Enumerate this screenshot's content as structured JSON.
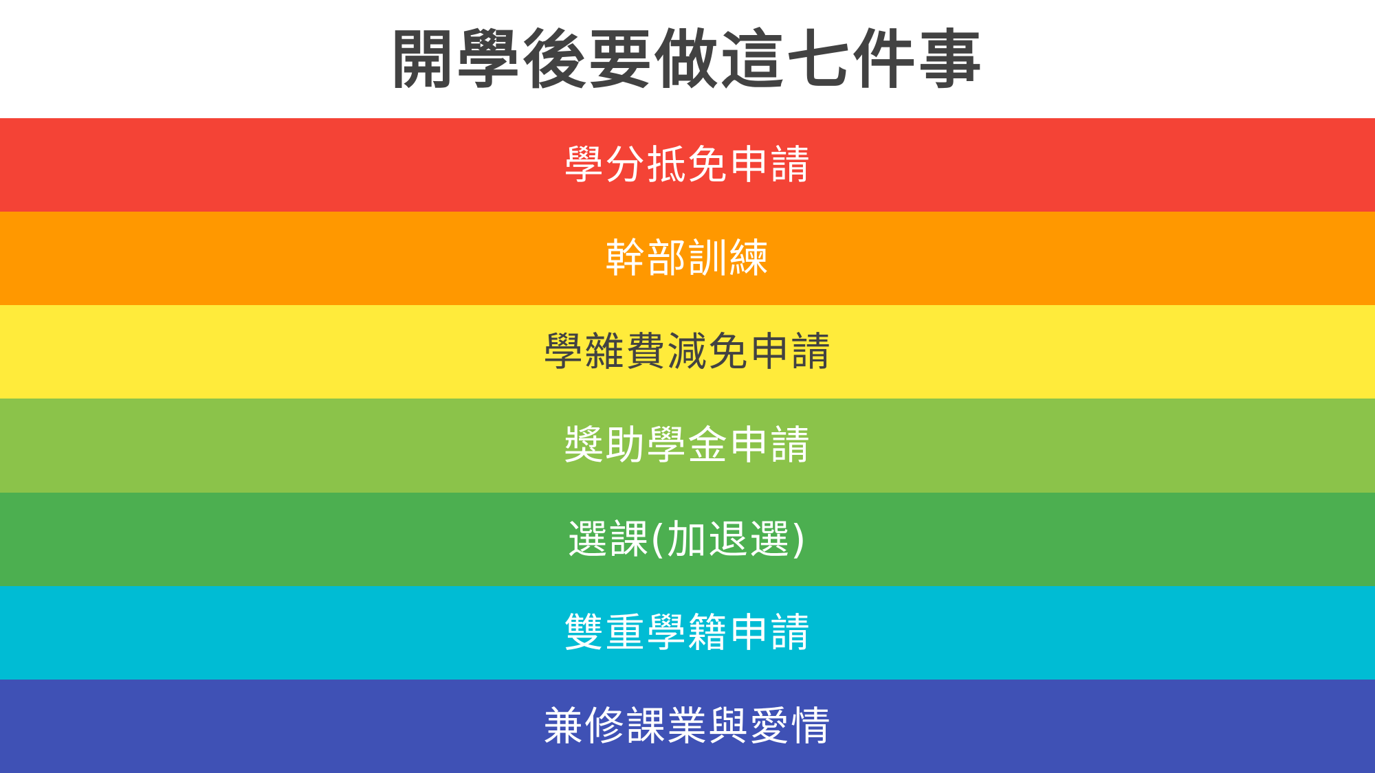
{
  "title": "開學後要做這七件事",
  "items": [
    {
      "label": "學分抵免申請",
      "bg": "#F44336",
      "fg": "#FFFFFF"
    },
    {
      "label": "幹部訓練",
      "bg": "#FF9800",
      "fg": "#FFFFFF"
    },
    {
      "label": "學雜費減免申請",
      "bg": "#FFEB3B",
      "fg": "#424242"
    },
    {
      "label": "獎助學金申請",
      "bg": "#8BC34A",
      "fg": "#FFFFFF"
    },
    {
      "label": "選課(加退選)",
      "bg": "#4CAF50",
      "fg": "#FFFFFF"
    },
    {
      "label": "雙重學籍申請",
      "bg": "#00BCD4",
      "fg": "#FFFFFF"
    },
    {
      "label": "兼修課業與愛情",
      "bg": "#3F51B5",
      "fg": "#FFFFFF"
    }
  ]
}
